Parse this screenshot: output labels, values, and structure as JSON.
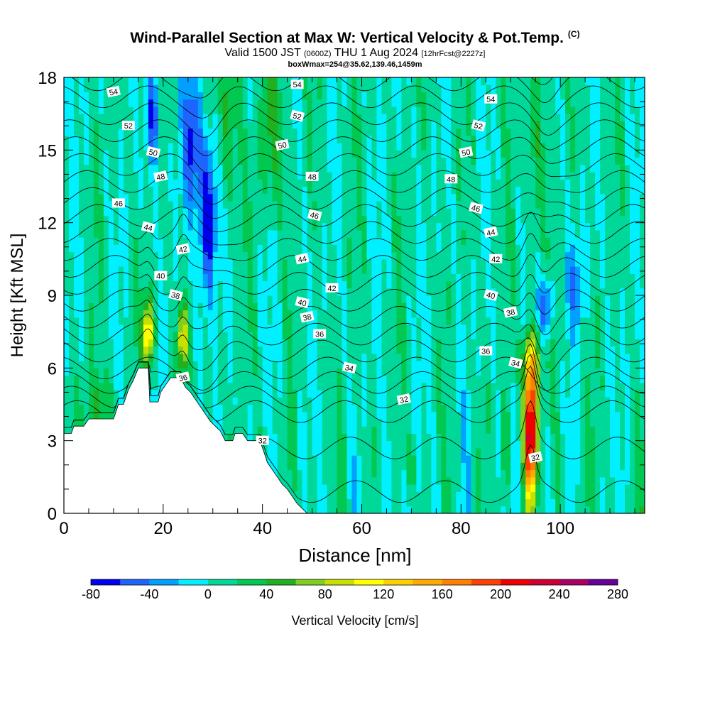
{
  "header": {
    "title": "Wind-Parallel Section at Max W: Vertical Velocity & Pot.Temp.",
    "copyright_mark": "(C)",
    "subtitle_main_a": "Valid 1500 JST",
    "subtitle_small_a": "(0600Z)",
    "subtitle_main_b": "THU 1 Aug 2024",
    "subtitle_small_b": "[12hrFcst@2227z]",
    "subtitle2": "boxWmax=254@35.62,139.46,1459m"
  },
  "chart_data": {
    "type": "heatmap",
    "title": "Wind-Parallel Section at Max W: Vertical Velocity & Pot.Temp.",
    "xlabel": "Distance [nm]",
    "ylabel": "Height [Kft MSL]",
    "xlim": [
      0,
      117
    ],
    "ylim": [
      0,
      18
    ],
    "x_ticks": [
      "0",
      "20",
      "40",
      "60",
      "80",
      "100"
    ],
    "y_ticks": [
      "0",
      "3",
      "6",
      "9",
      "12",
      "15",
      "18"
    ],
    "grid": false,
    "colorbar": {
      "label": "Vertical Velocity [cm/s]",
      "tick_labels": [
        "-80",
        "-40",
        "0",
        "40",
        "80",
        "120",
        "160",
        "200",
        "240",
        "280"
      ],
      "tick_values": [
        -80,
        -40,
        0,
        40,
        80,
        120,
        160,
        200,
        240,
        280
      ],
      "min": -80,
      "max": 280,
      "step": 20,
      "colors": [
        "#0000ee",
        "#1e64ff",
        "#00a0ff",
        "#00f0ff",
        "#00d89a",
        "#00c850",
        "#20b020",
        "#80d020",
        "#c8e000",
        "#ffff00",
        "#ffd000",
        "#ffaa00",
        "#ff8000",
        "#ff4000",
        "#ee0000",
        "#cc0033",
        "#aa0066",
        "#660099"
      ]
    },
    "contour_label_values": [
      "54",
      "52",
      "50",
      "48",
      "46",
      "44",
      "42",
      "40",
      "38",
      "36",
      "34",
      "32"
    ],
    "isentropes_theta": [
      31,
      32,
      33,
      34,
      35,
      36,
      37,
      38,
      39,
      40,
      41,
      42,
      43,
      44,
      45,
      46,
      47,
      48,
      49,
      50,
      51,
      52,
      53,
      54,
      55
    ],
    "terrain_kft": [
      [
        0,
        3.3
      ],
      [
        1.5,
        3.3
      ],
      [
        2,
        3.6
      ],
      [
        4,
        3.6
      ],
      [
        5,
        3.9
      ],
      [
        10,
        3.9
      ],
      [
        11,
        4.5
      ],
      [
        12,
        4.5
      ],
      [
        13,
        5.1
      ],
      [
        14,
        5.5
      ],
      [
        15,
        6.0
      ],
      [
        17,
        6.0
      ],
      [
        17.3,
        4.6
      ],
      [
        19,
        4.6
      ],
      [
        19.5,
        5.0
      ],
      [
        20.5,
        5.3
      ],
      [
        21.5,
        5.6
      ],
      [
        23.5,
        5.6
      ],
      [
        24.5,
        5.2
      ],
      [
        25.5,
        5.0
      ],
      [
        26.5,
        4.7
      ],
      [
        27.5,
        4.4
      ],
      [
        28.5,
        4.1
      ],
      [
        29.5,
        3.8
      ],
      [
        30.5,
        3.6
      ],
      [
        31.5,
        3.4
      ],
      [
        32.5,
        3.0
      ],
      [
        34,
        3.0
      ],
      [
        34.5,
        3.3
      ],
      [
        36,
        3.3
      ],
      [
        37,
        3.0
      ],
      [
        39.5,
        3.0
      ],
      [
        40.5,
        2.4
      ],
      [
        41,
        2.1
      ],
      [
        42,
        1.8
      ],
      [
        43,
        1.5
      ],
      [
        44,
        1.2
      ],
      [
        45,
        1.0
      ],
      [
        46,
        0.7
      ],
      [
        47,
        0.4
      ],
      [
        48,
        0.2
      ],
      [
        49,
        0.0
      ]
    ],
    "features": [
      {
        "type": "updraft",
        "x": 94,
        "y": 3.5,
        "w_cm_s": 254
      },
      {
        "type": "updraft",
        "x": 17,
        "y": 7.5,
        "w_cm_s": 130
      },
      {
        "type": "updraft",
        "x": 24,
        "y": 7.3,
        "w_cm_s": 110
      },
      {
        "type": "downdraft",
        "x": 29,
        "y": 12.3,
        "w_cm_s": -80
      },
      {
        "type": "downdraft",
        "x": 97,
        "y": 8.5,
        "w_cm_s": -60
      }
    ]
  },
  "colorbar_label": "Vertical Velocity [cm/s]"
}
